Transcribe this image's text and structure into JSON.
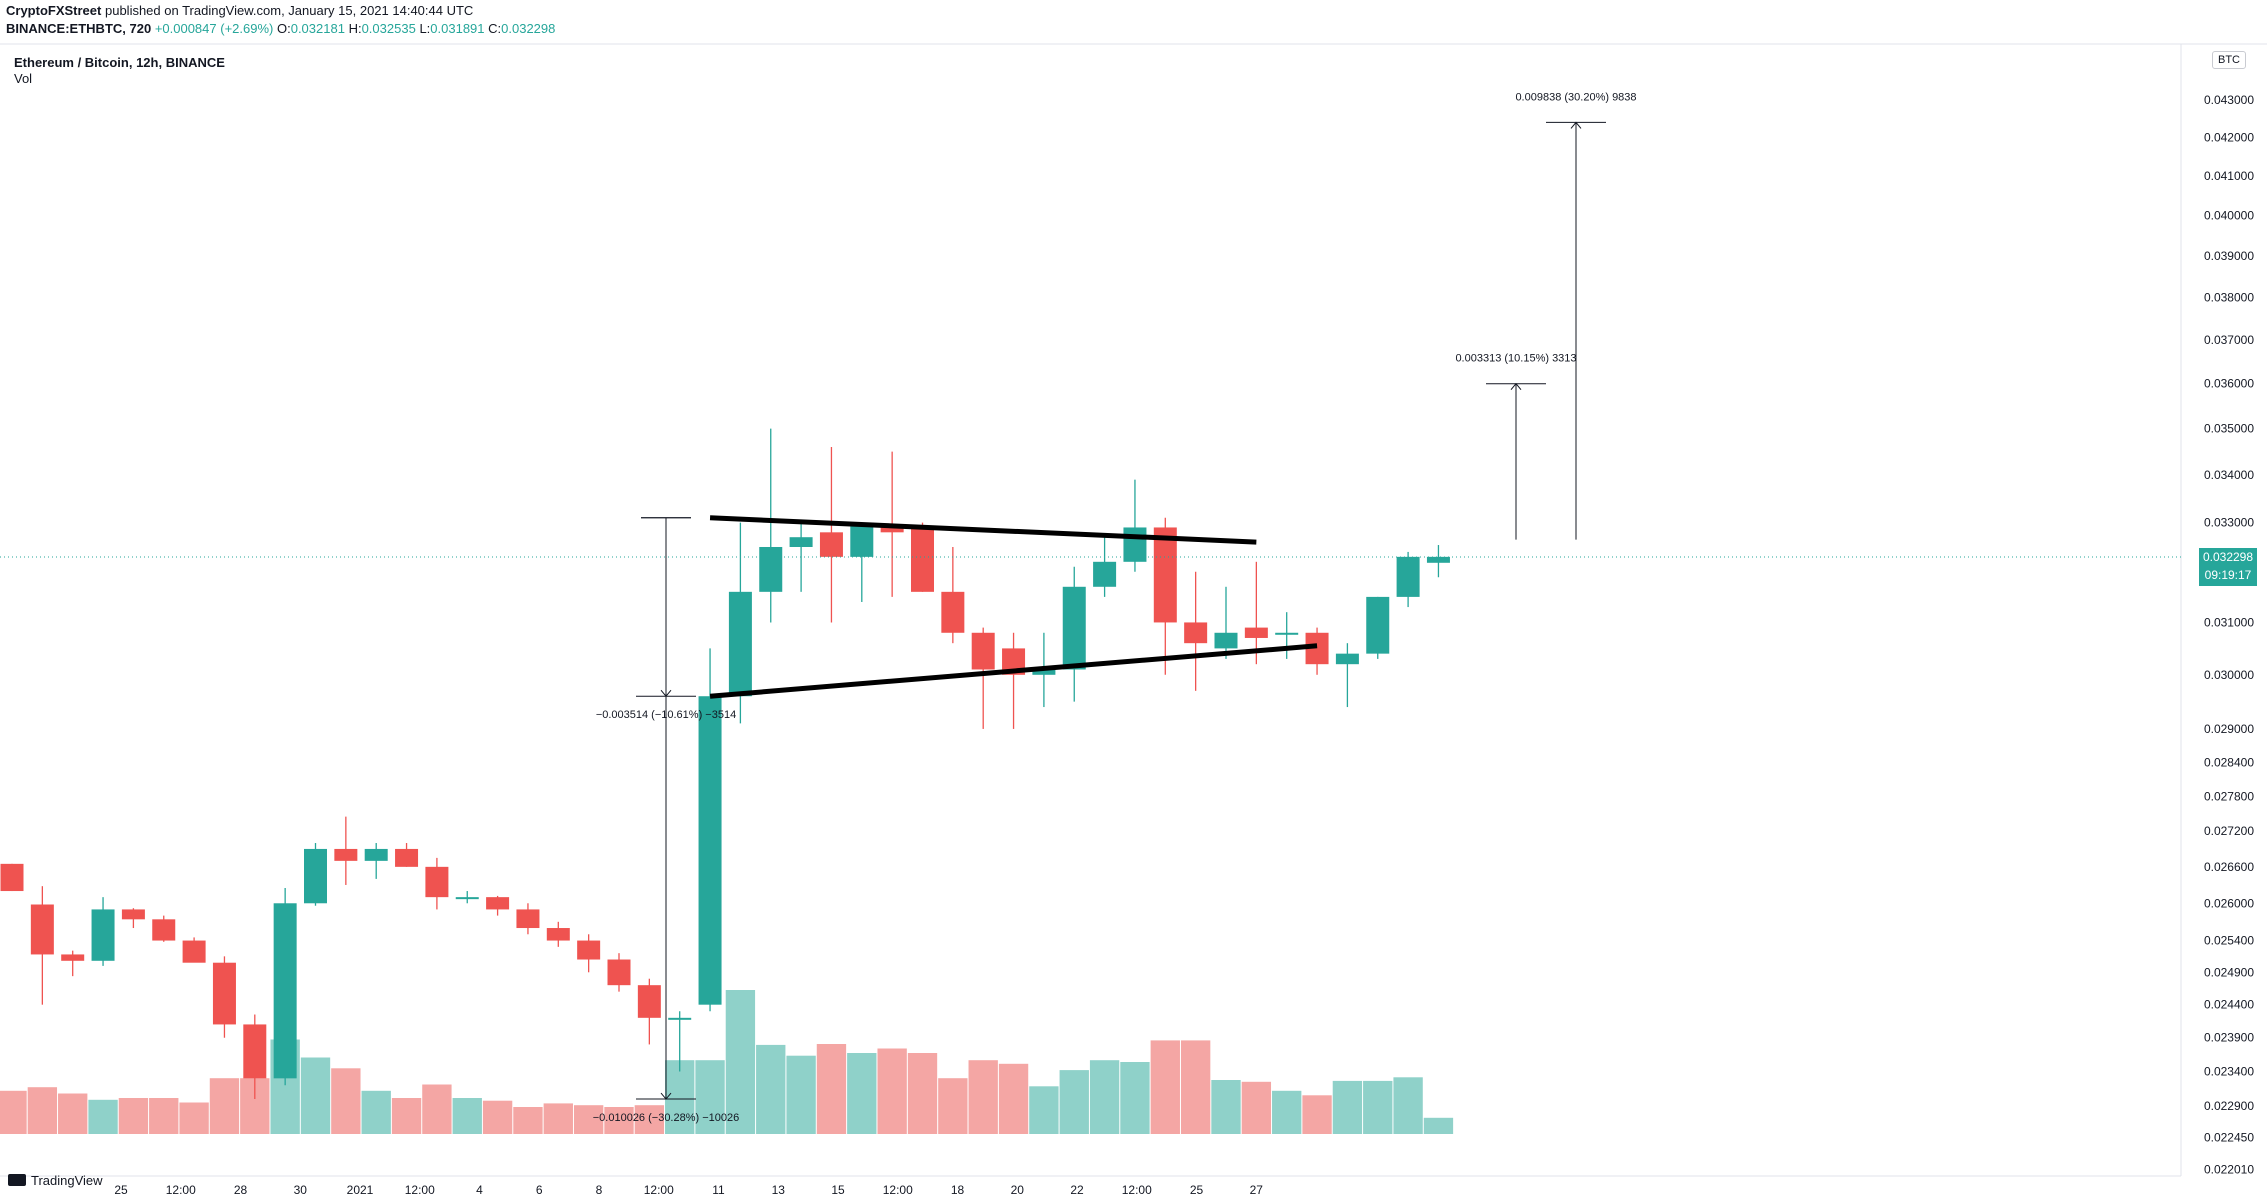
{
  "header": {
    "publisher": "CryptoFXStreet",
    "published_text": "published on TradingView.com, January 15, 2021 14:40:44 UTC",
    "symbol_line": "BINANCE:ETHBTC, 720",
    "change": "+0.000847 (+2.69%)",
    "o_label": "O:",
    "o_value": "0.032181",
    "h_label": "H:",
    "h_value": "0.032535",
    "l_label": "L:",
    "l_value": "0.031891",
    "c_label": "C:",
    "c_value": "0.032298"
  },
  "legend": {
    "title": "Ethereum / Bitcoin, 12h, BINANCE",
    "volume": "Vol"
  },
  "price_scale": {
    "unit": "BTC",
    "last_price": "0.032298",
    "countdown": "09:19:17"
  },
  "branding": {
    "logo_text": "TradingView"
  },
  "colors": {
    "up": "#26a69a",
    "down": "#ef5350",
    "vol_up": "#8fd1c9",
    "vol_down": "#f4a6a4",
    "text": "#131722",
    "grid_line": "#e0e3eb"
  },
  "chart_data": {
    "type": "candlestick",
    "title": "Ethereum / Bitcoin, 12h, BINANCE",
    "y_tick_labels": [
      "0.043000",
      "0.042000",
      "0.041000",
      "0.040000",
      "0.039000",
      "0.038000",
      "0.037000",
      "0.036000",
      "0.035000",
      "0.034000",
      "0.033000",
      "0.031000",
      "0.030000",
      "0.029000",
      "0.028400",
      "0.027800",
      "0.027200",
      "0.026600",
      "0.026000",
      "0.025400",
      "0.024900",
      "0.024400",
      "0.023900",
      "0.023400",
      "0.022900",
      "0.022450",
      "0.022010"
    ],
    "x_tick_labels": [
      "25",
      "12:00",
      "28",
      "30",
      "2021",
      "12:00",
      "4",
      "6",
      "8",
      "12:00",
      "11",
      "13",
      "15",
      "12:00",
      "18",
      "20",
      "22",
      "12:00",
      "25",
      "27"
    ],
    "candles": [
      {
        "o": 0.02665,
        "h": 0.02665,
        "l": 0.0262,
        "c": 0.0262
      },
      {
        "o": 0.02598,
        "h": 0.02628,
        "l": 0.0244,
        "c": 0.02518
      },
      {
        "o": 0.02518,
        "h": 0.02524,
        "l": 0.02484,
        "c": 0.02508
      },
      {
        "o": 0.02508,
        "h": 0.0261,
        "l": 0.025,
        "c": 0.0259
      },
      {
        "o": 0.0259,
        "h": 0.02592,
        "l": 0.0256,
        "c": 0.02574
      },
      {
        "o": 0.02574,
        "h": 0.0258,
        "l": 0.02538,
        "c": 0.0254
      },
      {
        "o": 0.0254,
        "h": 0.02545,
        "l": 0.0251,
        "c": 0.02505
      },
      {
        "o": 0.02505,
        "h": 0.02515,
        "l": 0.0239,
        "c": 0.0241
      },
      {
        "o": 0.0241,
        "h": 0.02425,
        "l": 0.023,
        "c": 0.0233
      },
      {
        "o": 0.0233,
        "h": 0.02625,
        "l": 0.0232,
        "c": 0.026
      },
      {
        "o": 0.026,
        "h": 0.027,
        "l": 0.02596,
        "c": 0.0269
      },
      {
        "o": 0.0269,
        "h": 0.02745,
        "l": 0.0263,
        "c": 0.0267
      },
      {
        "o": 0.0267,
        "h": 0.027,
        "l": 0.0264,
        "c": 0.0269
      },
      {
        "o": 0.0269,
        "h": 0.027,
        "l": 0.0266,
        "c": 0.0266
      },
      {
        "o": 0.0266,
        "h": 0.02675,
        "l": 0.0259,
        "c": 0.0261
      },
      {
        "o": 0.0261,
        "h": 0.0262,
        "l": 0.026,
        "c": 0.0261
      },
      {
        "o": 0.0261,
        "h": 0.02612,
        "l": 0.0258,
        "c": 0.0259
      },
      {
        "o": 0.0259,
        "h": 0.026,
        "l": 0.0255,
        "c": 0.0256
      },
      {
        "o": 0.0256,
        "h": 0.0257,
        "l": 0.0253,
        "c": 0.0254
      },
      {
        "o": 0.0254,
        "h": 0.0255,
        "l": 0.0249,
        "c": 0.0251
      },
      {
        "o": 0.0251,
        "h": 0.0252,
        "l": 0.0246,
        "c": 0.0247
      },
      {
        "o": 0.0247,
        "h": 0.0248,
        "l": 0.0238,
        "c": 0.0242
      },
      {
        "o": 0.0242,
        "h": 0.0243,
        "l": 0.0234,
        "c": 0.0242
      },
      {
        "o": 0.0244,
        "h": 0.0305,
        "l": 0.0243,
        "c": 0.0296
      },
      {
        "o": 0.0296,
        "h": 0.033,
        "l": 0.0291,
        "c": 0.0316
      },
      {
        "o": 0.0316,
        "h": 0.035,
        "l": 0.031,
        "c": 0.0325
      },
      {
        "o": 0.0325,
        "h": 0.033,
        "l": 0.0316,
        "c": 0.0327
      },
      {
        "o": 0.0328,
        "h": 0.0346,
        "l": 0.031,
        "c": 0.0323
      },
      {
        "o": 0.0323,
        "h": 0.033,
        "l": 0.0314,
        "c": 0.033
      },
      {
        "o": 0.0329,
        "h": 0.0345,
        "l": 0.0315,
        "c": 0.0328
      },
      {
        "o": 0.0329,
        "h": 0.033,
        "l": 0.0316,
        "c": 0.0316
      },
      {
        "o": 0.0316,
        "h": 0.0325,
        "l": 0.0306,
        "c": 0.0308
      },
      {
        "o": 0.0308,
        "h": 0.0309,
        "l": 0.029,
        "c": 0.0301
      },
      {
        "o": 0.0305,
        "h": 0.0308,
        "l": 0.029,
        "c": 0.03
      },
      {
        "o": 0.03,
        "h": 0.0308,
        "l": 0.0294,
        "c": 0.0301
      },
      {
        "o": 0.0301,
        "h": 0.0321,
        "l": 0.0295,
        "c": 0.0317
      },
      {
        "o": 0.0317,
        "h": 0.0327,
        "l": 0.0315,
        "c": 0.0322
      },
      {
        "o": 0.0322,
        "h": 0.0339,
        "l": 0.032,
        "c": 0.0329
      },
      {
        "o": 0.0329,
        "h": 0.0331,
        "l": 0.03,
        "c": 0.031
      },
      {
        "o": 0.031,
        "h": 0.032,
        "l": 0.0297,
        "c": 0.0306
      },
      {
        "o": 0.0305,
        "h": 0.0317,
        "l": 0.0303,
        "c": 0.0308
      },
      {
        "o": 0.0309,
        "h": 0.0322,
        "l": 0.0302,
        "c": 0.0307
      },
      {
        "o": 0.0308,
        "h": 0.0312,
        "l": 0.0303,
        "c": 0.0308
      },
      {
        "o": 0.0308,
        "h": 0.0309,
        "l": 0.03,
        "c": 0.0302
      },
      {
        "o": 0.0302,
        "h": 0.0306,
        "l": 0.0294,
        "c": 0.0304
      },
      {
        "o": 0.0304,
        "h": 0.0315,
        "l": 0.0303,
        "c": 0.0315
      },
      {
        "o": 0.0315,
        "h": 0.0324,
        "l": 0.0313,
        "c": 0.0323
      },
      {
        "o": 0.03218,
        "h": 0.03254,
        "l": 0.03189,
        "c": 0.0323
      }
    ],
    "volume_relative": [
      0.48,
      0.52,
      0.45,
      0.38,
      0.4,
      0.4,
      0.35,
      0.62,
      0.62,
      1.05,
      0.85,
      0.73,
      0.48,
      0.4,
      0.55,
      0.4,
      0.37,
      0.3,
      0.34,
      0.32,
      0.3,
      0.32,
      0.82,
      0.82,
      1.6,
      0.99,
      0.87,
      1.0,
      0.9,
      0.95,
      0.9,
      0.62,
      0.82,
      0.78,
      0.53,
      0.71,
      0.82,
      0.8,
      1.04,
      1.04,
      0.6,
      0.58,
      0.48,
      0.43,
      0.59,
      0.59,
      0.63,
      0.18
    ],
    "trendlines": [
      {
        "from": {
          "bar": 23,
          "price": 0.0331
        },
        "to": {
          "bar": 41,
          "price": 0.0326
        }
      },
      {
        "from": {
          "bar": 23,
          "price": 0.0296
        },
        "to": {
          "bar": 43,
          "price": 0.03055
        }
      }
    ],
    "measurements": [
      {
        "label": "−0.003514 (−10.61%) −3514",
        "from_price": 0.0331,
        "to_price": 0.0296
      },
      {
        "label": "−0.010026 (−30.28%) −10026",
        "from_price": 0.0331,
        "to_price": 0.023
      },
      {
        "label": "0.003313 (10.15%) 3313",
        "from_price": 0.03265,
        "to_price": 0.036
      },
      {
        "label": "0.009838 (30.20%) 9838",
        "from_price": 0.03265,
        "to_price": 0.0424
      }
    ],
    "last_price": 0.032298,
    "y_scale": "log",
    "grid": false
  }
}
